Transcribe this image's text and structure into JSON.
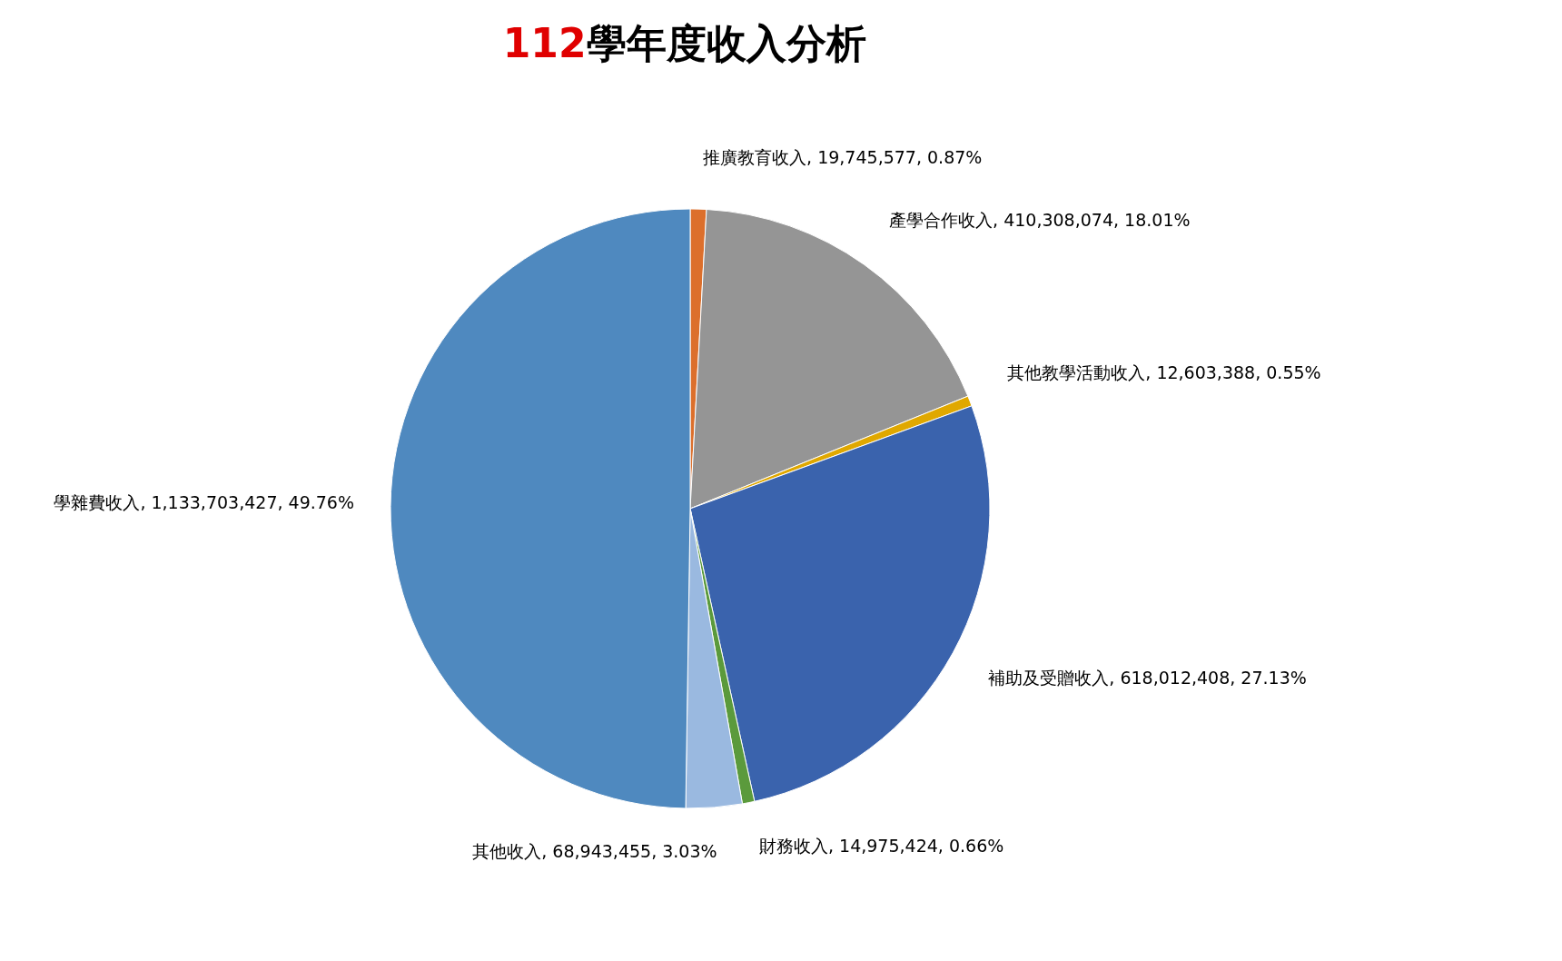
{
  "chart_data": {
    "type": "pie",
    "title": "112學年度收入分析",
    "categories": [
      "推廣教育收入",
      "產學合作收入",
      "其他教學活動收入",
      "補助及受贈收入",
      "財務收入",
      "其他收入",
      "學雜費收入"
    ],
    "values": [
      19745577,
      410308074,
      12603388,
      618012408,
      14975424,
      68943455,
      1133703427
    ],
    "value_labels": [
      ", 19,745,577, 0.87%",
      ", 410,308,074, 18.01%",
      ", 12,603,388, 0.55%",
      ", 618,012,408, 27.13%",
      ", 14,975,424, 0.66%",
      ", 68,943,455, 3.03%",
      ", 1,133,703,427, 49.76%"
    ],
    "colors": [
      "#dc6f2c",
      "#959595",
      "#e0a800",
      "#3a63ad",
      "#5b9a3c",
      "#9ab9e0",
      "#4f89bf"
    ],
    "legend": false
  }
}
